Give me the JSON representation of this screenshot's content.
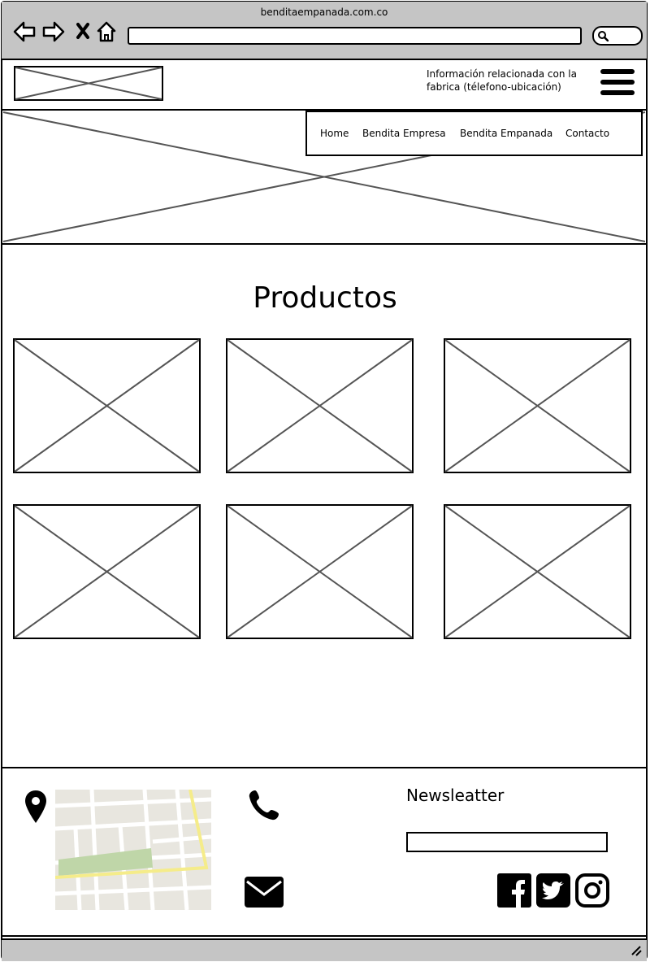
{
  "browser": {
    "url": "benditaempanada.com.co",
    "icons": [
      "back-arrow-icon",
      "forward-arrow-icon",
      "close-icon",
      "home-icon",
      "search-icon"
    ]
  },
  "header": {
    "info_line1": "Información relacionada con la",
    "info_line2": "fabrica (télefono-ubicación)"
  },
  "nav": {
    "items": [
      {
        "label": "Home"
      },
      {
        "label": "Bendita Empresa"
      },
      {
        "label": "Bendita Empanada"
      },
      {
        "label": "Contacto"
      }
    ]
  },
  "products": {
    "title": "Productos"
  },
  "footer": {
    "newsletter_label": "Newsleatter",
    "icons": [
      "map-pin-icon",
      "phone-icon",
      "envelope-icon",
      "facebook-icon",
      "twitter-icon",
      "instagram-icon"
    ]
  },
  "colors": {
    "chrome_gray": "#c5c5c5",
    "placeholder_line": "#555555",
    "map_park": "#bfd6a8",
    "map_road": "#f5ec8a",
    "map_bg": "#e8e6df"
  }
}
